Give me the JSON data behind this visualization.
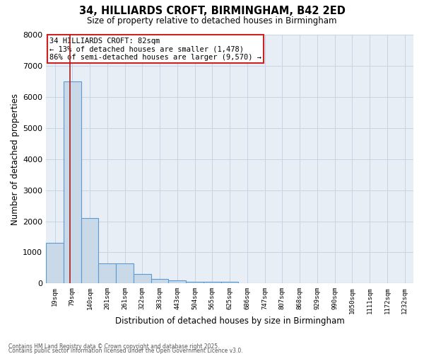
{
  "title1": "34, HILLIARDS CROFT, BIRMINGHAM, B42 2ED",
  "title2": "Size of property relative to detached houses in Birmingham",
  "xlabel": "Distribution of detached houses by size in Birmingham",
  "ylabel": "Number of detached properties",
  "categories": [
    "19sqm",
    "79sqm",
    "140sqm",
    "201sqm",
    "261sqm",
    "322sqm",
    "383sqm",
    "443sqm",
    "504sqm",
    "565sqm",
    "625sqm",
    "686sqm",
    "747sqm",
    "807sqm",
    "868sqm",
    "929sqm",
    "990sqm",
    "1050sqm",
    "1111sqm",
    "1172sqm",
    "1232sqm"
  ],
  "values": [
    1300,
    6500,
    2100,
    650,
    650,
    300,
    150,
    100,
    50,
    50,
    50,
    0,
    0,
    0,
    0,
    0,
    0,
    0,
    0,
    0,
    0
  ],
  "bar_color": "#c9d9e8",
  "bar_edge_color": "#5b9bd5",
  "bar_edge_width": 0.8,
  "grid_color": "#c8d4e3",
  "background_color": "#e8eef5",
  "ylim": [
    0,
    8000
  ],
  "yticks": [
    0,
    1000,
    2000,
    3000,
    4000,
    5000,
    6000,
    7000,
    8000
  ],
  "red_line_x": 0.87,
  "red_line_color": "#aa2020",
  "annotation_text_line1": "34 HILLIARDS CROFT: 82sqm",
  "annotation_text_line2": "← 13% of detached houses are smaller (1,478)",
  "annotation_text_line3": "86% of semi-detached houses are larger (9,570) →",
  "annotation_box_color": "#cc2222",
  "annotation_bg_color": "#ffffff",
  "footnote1": "Contains HM Land Registry data © Crown copyright and database right 2025.",
  "footnote2": "Contains public sector information licensed under the Open Government Licence v3.0."
}
